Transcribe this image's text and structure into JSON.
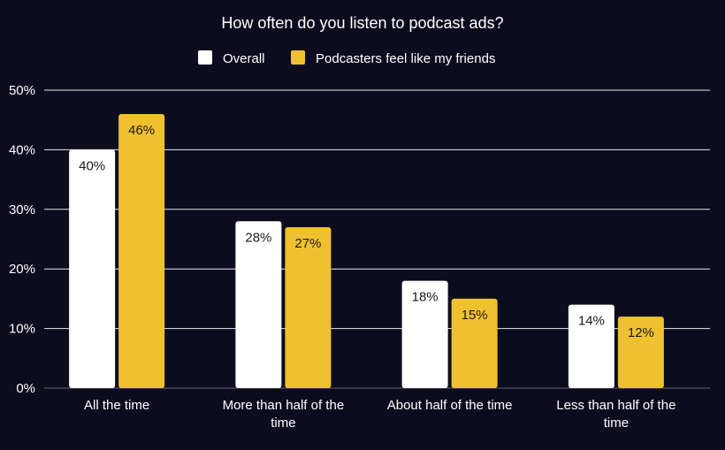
{
  "chart_data": {
    "type": "bar",
    "title": "How often do you listen to podcast ads?",
    "categories": [
      [
        "All the time"
      ],
      [
        "More than half of the",
        "time"
      ],
      [
        "About half of the time"
      ],
      [
        "Less than half of the",
        "time"
      ]
    ],
    "series": [
      {
        "name": "Overall",
        "color": "#ffffff",
        "label_color": "#1a1a1a",
        "values": [
          40,
          28,
          18,
          14
        ]
      },
      {
        "name": "Podcasters feel like my friends",
        "color": "#efc12f",
        "label_color": "#1a1a1a",
        "values": [
          46,
          27,
          15,
          12
        ]
      }
    ],
    "value_suffix": "%",
    "ylim": [
      0,
      50
    ],
    "yticks": [
      "0%",
      "10%",
      "20%",
      "30%",
      "40%",
      "50%"
    ],
    "ytick_values": [
      0,
      10,
      20,
      30,
      40,
      50
    ],
    "grid": true,
    "legend_position": "top-center",
    "xlabel": "",
    "ylabel": ""
  },
  "colors": {
    "background": "#0d0c1e",
    "text": "#ffffff",
    "grid": "#ffffff"
  }
}
